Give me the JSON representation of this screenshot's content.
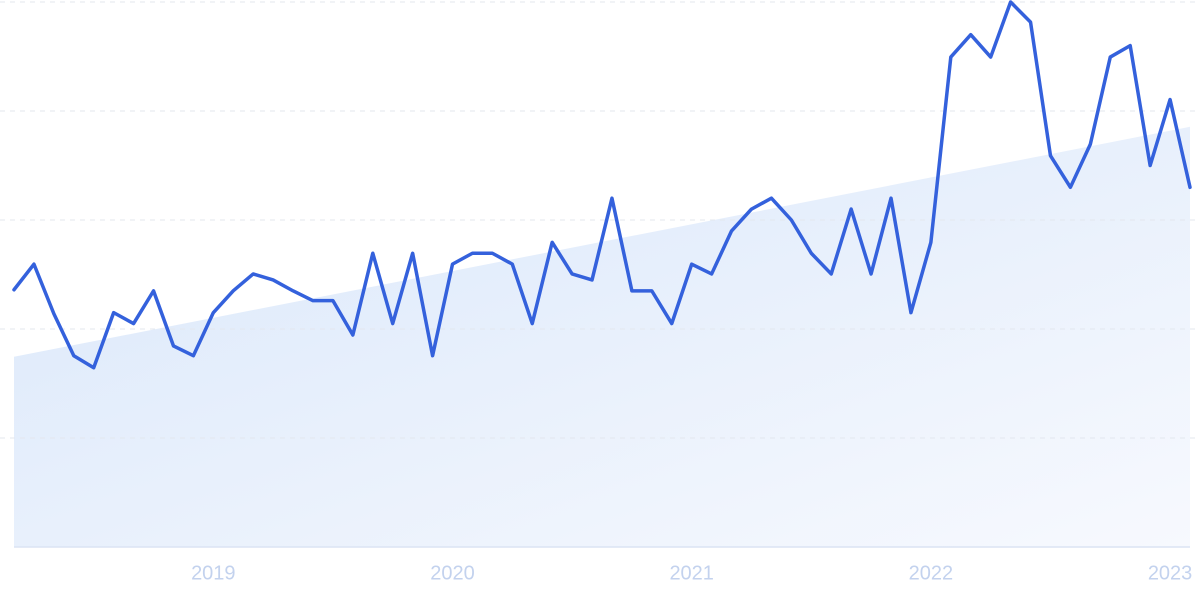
{
  "chart_data": {
    "type": "line",
    "categories": [
      null,
      null,
      null,
      null,
      null,
      null,
      null,
      null,
      null,
      null,
      "2019",
      null,
      null,
      null,
      null,
      null,
      null,
      null,
      null,
      null,
      null,
      null,
      "2020",
      null,
      null,
      null,
      null,
      null,
      null,
      null,
      null,
      null,
      null,
      null,
      "2021",
      null,
      null,
      null,
      null,
      null,
      null,
      null,
      null,
      null,
      null,
      null,
      "2022",
      null,
      null,
      null,
      null,
      null,
      null,
      null,
      null,
      null,
      null,
      null,
      "2023",
      null
    ],
    "values": [
      47.2,
      51.9,
      42.8,
      35.1,
      32.9,
      43.0,
      41.0,
      47.0,
      36.9,
      35.1,
      43.0,
      47.0,
      50.1,
      49.0,
      47.0,
      45.2,
      45.2,
      38.9,
      53.9,
      41.0,
      53.9,
      35.1,
      51.9,
      53.9,
      53.9,
      51.9,
      41.0,
      55.9,
      50.1,
      49.0,
      64.0,
      47.0,
      47.0,
      41.0,
      51.9,
      50.1,
      58.0,
      62.0,
      64.0,
      60.0,
      53.9,
      50.1,
      62.0,
      50.1,
      64.0,
      43.0,
      55.9,
      89.9,
      94.0,
      89.9,
      100,
      96.3,
      71.8,
      66.0,
      73.9,
      89.9,
      92.0,
      70.0,
      82.1,
      66.0
    ],
    "color": "#3461dc",
    "trend": [
      34.9,
      77.1
    ],
    "ylim": [
      0,
      100
    ],
    "yticks": [
      0,
      20,
      40,
      60,
      80,
      100
    ],
    "grid": true
  }
}
